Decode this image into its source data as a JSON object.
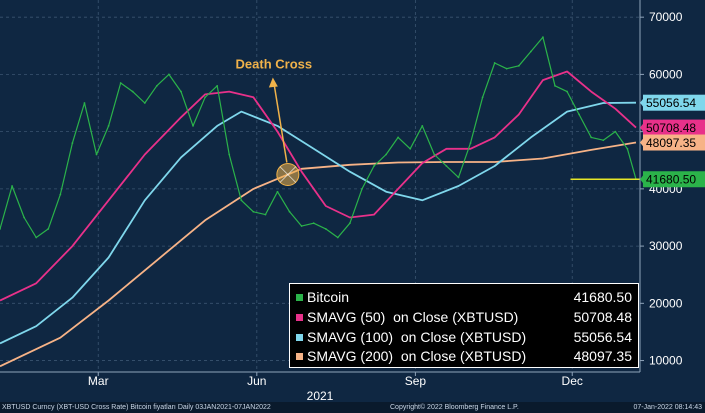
{
  "chart_data": {
    "type": "line",
    "year_label": "2021",
    "x_ticks": [
      "Mar",
      "Jun",
      "Sep",
      "Dec"
    ],
    "x_tick_dates": [
      "2021-03-01",
      "2021-06-01",
      "2021-09-01",
      "2021-12-01"
    ],
    "x_range": [
      "2021-01-03",
      "2022-01-07"
    ],
    "y_ticks": [
      10000,
      20000,
      30000,
      40000,
      50000,
      60000,
      70000
    ],
    "ylim": [
      8000,
      73000
    ],
    "grid": true,
    "legend_position": "bottom-right",
    "annotation": {
      "text": "Death Cross",
      "date": "2021-06-19",
      "value": 42500
    },
    "support_line": {
      "value": 41680.5,
      "from": "2021-11-30",
      "to": "2022-01-07"
    },
    "series": [
      {
        "name": "Bitcoin",
        "color": "#2bb34a",
        "last_value": "41680.50",
        "dates": [
          "2021-01-03",
          "2021-01-10",
          "2021-01-17",
          "2021-01-24",
          "2021-01-31",
          "2021-02-07",
          "2021-02-14",
          "2021-02-21",
          "2021-02-28",
          "2021-03-07",
          "2021-03-14",
          "2021-03-21",
          "2021-03-28",
          "2021-04-04",
          "2021-04-11",
          "2021-04-18",
          "2021-04-25",
          "2021-05-02",
          "2021-05-09",
          "2021-05-16",
          "2021-05-23",
          "2021-05-30",
          "2021-06-06",
          "2021-06-13",
          "2021-06-20",
          "2021-06-27",
          "2021-07-04",
          "2021-07-11",
          "2021-07-18",
          "2021-07-25",
          "2021-08-01",
          "2021-08-08",
          "2021-08-15",
          "2021-08-22",
          "2021-08-29",
          "2021-09-05",
          "2021-09-12",
          "2021-09-19",
          "2021-09-26",
          "2021-10-03",
          "2021-10-10",
          "2021-10-17",
          "2021-10-24",
          "2021-10-31",
          "2021-11-07",
          "2021-11-14",
          "2021-11-21",
          "2021-11-28",
          "2021-12-05",
          "2021-12-12",
          "2021-12-19",
          "2021-12-26",
          "2022-01-02",
          "2022-01-07"
        ],
        "values": [
          33000,
          40500,
          35000,
          31500,
          33000,
          39000,
          48000,
          55000,
          46000,
          51000,
          58500,
          57000,
          55000,
          58000,
          60000,
          57000,
          51000,
          56000,
          58000,
          46000,
          38000,
          36000,
          35500,
          39500,
          36000,
          33500,
          34000,
          33000,
          31500,
          34000,
          40000,
          44000,
          46000,
          49000,
          47000,
          51000,
          46000,
          44000,
          42000,
          48000,
          56000,
          62000,
          61000,
          61500,
          64000,
          66500,
          58000,
          57000,
          53000,
          49000,
          48500,
          50000,
          47000,
          41680
        ]
      },
      {
        "name": "SMAVG (50)  on Close (XBTUSD)",
        "color": "#e8318a",
        "last_value": "50708.48",
        "dates": [
          "2021-01-03",
          "2021-01-24",
          "2021-02-14",
          "2021-03-07",
          "2021-03-28",
          "2021-04-18",
          "2021-05-02",
          "2021-05-16",
          "2021-05-30",
          "2021-06-13",
          "2021-06-27",
          "2021-07-11",
          "2021-07-25",
          "2021-08-08",
          "2021-08-22",
          "2021-09-05",
          "2021-09-19",
          "2021-10-03",
          "2021-10-17",
          "2021-10-31",
          "2021-11-14",
          "2021-11-28",
          "2021-12-12",
          "2021-12-26",
          "2022-01-07"
        ],
        "values": [
          20500,
          23500,
          30000,
          38000,
          46000,
          52500,
          56500,
          57000,
          56000,
          50000,
          43000,
          37000,
          35000,
          35500,
          40000,
          44500,
          47000,
          47000,
          49000,
          53000,
          59000,
          60500,
          57000,
          54000,
          50708
        ]
      },
      {
        "name": "SMAVG (100)  on Close (XBTUSD)",
        "color": "#7fd7ec",
        "last_value": "55056.54",
        "dates": [
          "2021-01-03",
          "2021-01-24",
          "2021-02-14",
          "2021-03-07",
          "2021-03-28",
          "2021-04-18",
          "2021-05-09",
          "2021-05-23",
          "2021-06-13",
          "2021-07-04",
          "2021-07-25",
          "2021-08-15",
          "2021-09-05",
          "2021-09-26",
          "2021-10-17",
          "2021-11-07",
          "2021-11-28",
          "2021-12-19",
          "2022-01-07"
        ],
        "values": [
          13000,
          16000,
          21000,
          28000,
          38000,
          45500,
          51000,
          53500,
          51000,
          47000,
          43000,
          39500,
          38000,
          40500,
          44000,
          49000,
          53500,
          55000,
          55056
        ]
      },
      {
        "name": "SMAVG (200)  on Close (XBTUSD)",
        "color": "#f7b387",
        "last_value": "48097.35",
        "dates": [
          "2021-01-03",
          "2021-02-07",
          "2021-03-07",
          "2021-04-04",
          "2021-05-02",
          "2021-05-30",
          "2021-06-27",
          "2021-07-25",
          "2021-08-22",
          "2021-09-19",
          "2021-10-17",
          "2021-11-14",
          "2021-12-12",
          "2022-01-07"
        ],
        "values": [
          9000,
          14000,
          20500,
          27500,
          34500,
          40000,
          43500,
          44200,
          44600,
          44700,
          44700,
          45300,
          46800,
          48097
        ]
      }
    ],
    "value_tags": [
      {
        "label": "55056.54",
        "value": 55056.54,
        "bg": "#7fd7ec",
        "fg": "#000000"
      },
      {
        "label": "50708.48",
        "value": 50708.48,
        "bg": "#e8318a",
        "fg": "#000000"
      },
      {
        "label": "48097.35",
        "value": 48097.35,
        "bg": "#f7b387",
        "fg": "#000000"
      },
      {
        "label": "41680.50",
        "value": 41680.5,
        "bg": "#2bb34a",
        "fg": "#000000"
      }
    ]
  },
  "footer": {
    "left": "XBTUSD Curncy (XBT-USD Cross Rate) Bitcoin fiyatları  Daily 03JAN2021-07JAN2022",
    "center": "Copyright© 2022 Bloomberg Finance L.P.",
    "right": "07-Jan-2022 08:14:43"
  },
  "colors": {
    "background": "#0f2742",
    "grid": "#3a5470",
    "annotation": "#f0b24a",
    "support": "#e6e628"
  }
}
